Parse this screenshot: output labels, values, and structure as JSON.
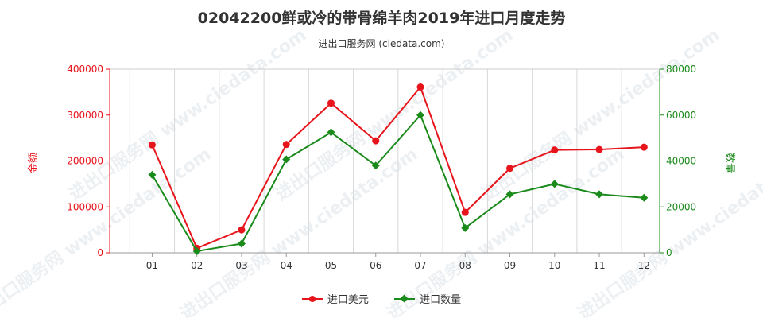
{
  "header": {
    "title": "02042200鲜或冷的带骨绵羊肉2019年进口月度走势",
    "subtitle": "进出口服务网 (ciedata.com)"
  },
  "watermark": "进出口服务网 www.ciedata.com",
  "chart_data": {
    "type": "line",
    "categories": [
      "01",
      "02",
      "03",
      "04",
      "05",
      "06",
      "07",
      "08",
      "09",
      "10",
      "11",
      "12"
    ],
    "series": [
      {
        "name": "进口美元",
        "axis": "left",
        "color": "#e8141b",
        "marker": "circle",
        "values": [
          235000,
          10000,
          50000,
          236000,
          326000,
          244000,
          361000,
          88000,
          184000,
          224000,
          225000,
          230000
        ]
      },
      {
        "name": "进口数量",
        "axis": "right",
        "color": "#1a8a1a",
        "marker": "diamond",
        "values": [
          34000,
          700,
          4000,
          40700,
          52500,
          38000,
          60000,
          10800,
          25500,
          30000,
          25500,
          24000
        ]
      }
    ],
    "y_left": {
      "label": "金额",
      "min": 0,
      "max": 400000,
      "ticks": [
        "0",
        "100000",
        "200000",
        "300000",
        "400000"
      ],
      "color": "#e8141b"
    },
    "y_right": {
      "label": "数量",
      "min": 0,
      "max": 80000,
      "ticks": [
        "0",
        "20000",
        "40000",
        "60000",
        "80000"
      ],
      "color": "#1a8a1a"
    },
    "grid": "vertical",
    "legend_position": "bottom"
  }
}
